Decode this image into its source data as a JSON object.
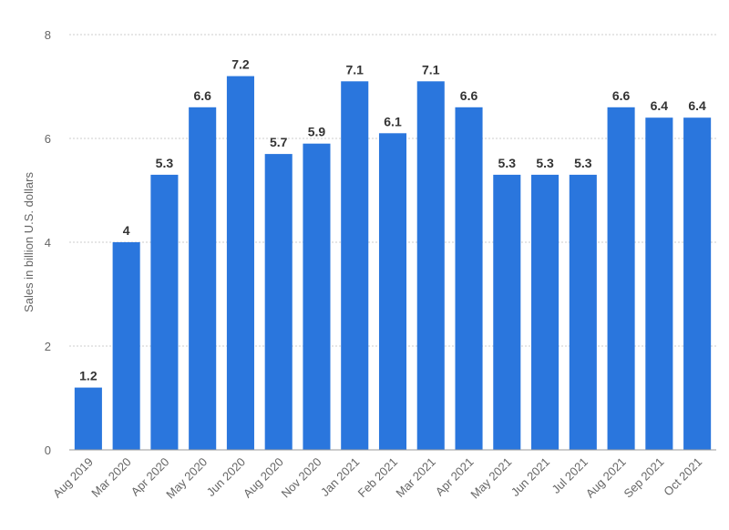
{
  "chart_data": {
    "type": "bar",
    "title": "",
    "xlabel": "",
    "ylabel": "Sales in billion U.S. dollars",
    "ylim": [
      0,
      8
    ],
    "yticks": [
      0,
      2,
      4,
      6,
      8
    ],
    "ytick_labels": [
      "0",
      "2",
      "4",
      "6",
      "8"
    ],
    "grid": true,
    "legend": "none",
    "bar_color": "#2a76dd",
    "categories": [
      "Aug 2019",
      "Mar 2020",
      "Apr 2020",
      "May 2020",
      "Jun 2020",
      "Aug 2020",
      "Nov 2020",
      "Jan 2021",
      "Feb 2021",
      "Mar 2021",
      "Apr 2021",
      "May 2021",
      "Jun 2021",
      "Jul 2021",
      "Aug 2021",
      "Sep 2021",
      "Oct 2021"
    ],
    "values": [
      1.2,
      4,
      5.3,
      6.6,
      7.2,
      5.7,
      5.9,
      7.1,
      6.1,
      7.1,
      6.6,
      5.3,
      5.3,
      5.3,
      6.6,
      6.4,
      6.4
    ],
    "value_labels": [
      "1.2",
      "4",
      "5.3",
      "6.6",
      "7.2",
      "5.7",
      "5.9",
      "7.1",
      "6.1",
      "7.1",
      "6.6",
      "5.3",
      "5.3",
      "5.3",
      "6.6",
      "6.4",
      "6.4"
    ]
  }
}
